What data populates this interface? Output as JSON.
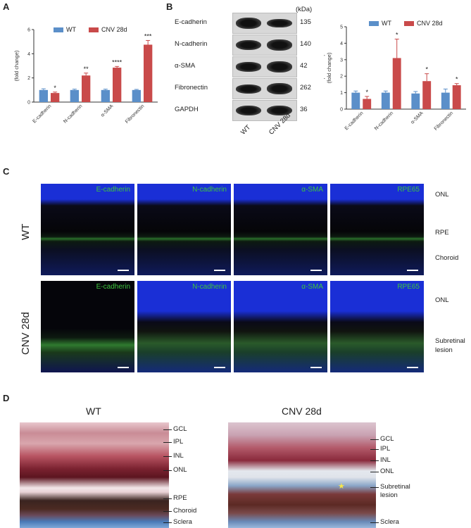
{
  "panels": {
    "A": "A",
    "B": "B",
    "C": "C",
    "D": "D"
  },
  "colors": {
    "wt": "#5b8fc9",
    "cnv": "#c94a4a"
  },
  "legend": {
    "wt": "WT",
    "cnv": "CNV 28d"
  },
  "panelA": {
    "ylabel_line1": "Relative mRNA expression",
    "ylabel_line2": "(fold change)"
  },
  "panelB_chart": {
    "ylabel_line1": "Relative protein expression",
    "ylabel_line2": "(fold change)"
  },
  "chart_data": [
    {
      "type": "bar",
      "categories": [
        "E-cadherin",
        "N-cadherin",
        "α-SMA",
        "Fibronectin"
      ],
      "series": [
        {
          "name": "WT",
          "values": [
            1.0,
            1.0,
            1.0,
            1.0
          ],
          "errors": [
            0.1,
            0.07,
            0.07,
            0.05
          ]
        },
        {
          "name": "CNV 28d",
          "values": [
            0.75,
            2.2,
            2.85,
            4.75
          ],
          "errors": [
            0.08,
            0.2,
            0.1,
            0.35
          ]
        }
      ],
      "significance": [
        "*",
        "**",
        "****",
        "***"
      ],
      "ylabel": "Relative mRNA expression (fold change)",
      "ylim": [
        0,
        6
      ],
      "yticks": [
        "0",
        "2",
        "4",
        "6"
      ]
    },
    {
      "type": "bar",
      "categories": [
        "E-cadherin",
        "N-cadherin",
        "α-SMA",
        "Fibronectin"
      ],
      "series": [
        {
          "name": "WT",
          "values": [
            1.0,
            1.0,
            0.95,
            1.0
          ],
          "errors": [
            0.1,
            0.1,
            0.12,
            0.22
          ]
        },
        {
          "name": "CNV 28d",
          "values": [
            0.62,
            3.1,
            1.7,
            1.45
          ],
          "errors": [
            0.15,
            1.15,
            0.45,
            0.1
          ]
        }
      ],
      "significance": [
        "*",
        "*",
        "*",
        "*"
      ],
      "ylabel": "Relative protein expression (fold change)",
      "ylim": [
        0,
        5
      ],
      "yticks": [
        "0",
        "1",
        "2",
        "3",
        "4",
        "5"
      ]
    }
  ],
  "blot": {
    "kda_header": "(kDa)",
    "rows": [
      {
        "protein": "E-cadherin",
        "kda": "135"
      },
      {
        "protein": "N-cadherin",
        "kda": "140"
      },
      {
        "protein": "α-SMA",
        "kda": "42"
      },
      {
        "protein": "Fibronectin",
        "kda": "262"
      },
      {
        "protein": "GAPDH",
        "kda": "36"
      }
    ],
    "lanes": [
      "WT",
      "CNV 28d"
    ]
  },
  "panelC": {
    "rows": [
      "WT",
      "CNV 28d"
    ],
    "markers": [
      "E-cadherin",
      "N-cadherin",
      "α-SMA",
      "RPE65"
    ],
    "wt_layers": [
      "ONL",
      "RPE",
      "Choroid"
    ],
    "cnv_layers": [
      "ONL",
      "Subretinal",
      "lesion"
    ]
  },
  "panelD": {
    "wt_title": "WT",
    "cnv_title": "CNV 28d",
    "wt_layers": [
      "GCL",
      "IPL",
      "INL",
      "ONL",
      "RPE",
      "Choroid",
      "Sclera"
    ],
    "cnv_layers": [
      "GCL",
      "IPL",
      "INL",
      "ONL",
      "Subretinal",
      "lesion",
      "Sclera"
    ]
  }
}
